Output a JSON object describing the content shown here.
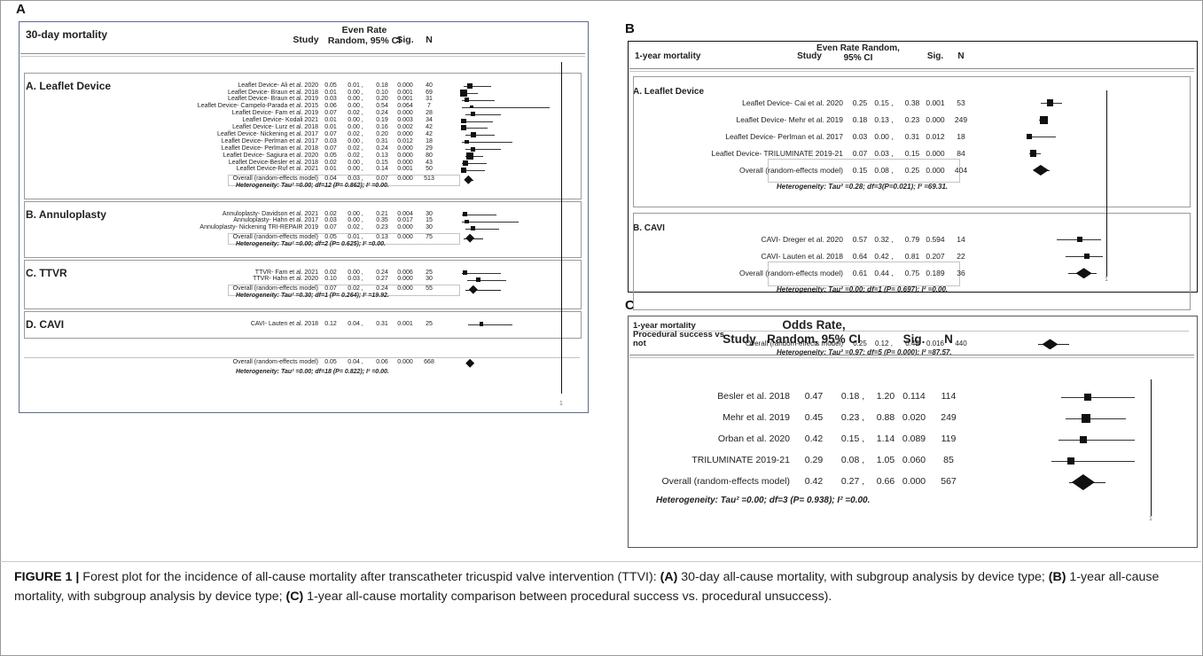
{
  "figure": {
    "panel_labels": [
      "A",
      "B",
      "C"
    ],
    "caption": {
      "prefix": "FIGURE 1 |",
      "parts": [
        {
          "bold": false,
          "text": " Forest plot for the incidence of all-cause mortality after transcatheter tricuspid valve intervention (TTVI): "
        },
        {
          "bold": true,
          "text": "(A)"
        },
        {
          "bold": false,
          "text": " 30-day all-cause mortality, with subgroup analysis by device type; "
        },
        {
          "bold": true,
          "text": "(B)"
        },
        {
          "bold": false,
          "text": " 1-year all-cause mortality, with subgroup analysis by device type; "
        },
        {
          "bold": true,
          "text": "(C)"
        },
        {
          "bold": false,
          "text": " 1-year all-cause mortality comparison between procedural success vs. procedural unsuccess)."
        }
      ]
    }
  },
  "chart_data": [
    {
      "type": "table",
      "panel": "A",
      "title": "30-day mortality",
      "columns": [
        "Study",
        "Even Rate Random, 95% CI",
        "Sig.",
        "N"
      ],
      "forest_axis_end": "1",
      "groups": [
        {
          "name": "A. Leaflet Device",
          "rows": [
            {
              "study": "Leaflet Device- Ali et al. 2020",
              "est": 0.05,
              "lo": 0.01,
              "hi": 0.18,
              "sig": "0.000",
              "n": 40
            },
            {
              "study": "Leaflet Device- Braun et al. 2018",
              "est": 0.01,
              "lo": 0.0,
              "hi": 0.1,
              "sig": "0.001",
              "n": 69
            },
            {
              "study": "Leaflet Device- Braun et al. 2019",
              "est": 0.03,
              "lo": 0.0,
              "hi": 0.2,
              "sig": "0.001",
              "n": 31
            },
            {
              "study": "Leaflet Device- Campelo-Parada et al. 2015",
              "est": 0.06,
              "lo": 0.0,
              "hi": 0.54,
              "sig": "0.064",
              "n": 7
            },
            {
              "study": "Leaflet Device- Fam et al. 2019",
              "est": 0.07,
              "lo": 0.02,
              "hi": 0.24,
              "sig": "0.000",
              "n": 28
            },
            {
              "study": "Leaflet Device- Kodali 2021",
              "est": 0.01,
              "lo": 0.0,
              "hi": 0.19,
              "sig": "0.003",
              "n": 34
            },
            {
              "study": "Leaflet Device- Lurz et al. 2018",
              "est": 0.01,
              "lo": 0.0,
              "hi": 0.16,
              "sig": "0.002",
              "n": 42
            },
            {
              "study": "Leaflet Device- Nickening et al. 2017",
              "est": 0.07,
              "lo": 0.02,
              "hi": 0.2,
              "sig": "0.000",
              "n": 42
            },
            {
              "study": "Leaflet Device- Perlman et al. 2017",
              "est": 0.03,
              "lo": 0.0,
              "hi": 0.31,
              "sig": "0.012",
              "n": 18
            },
            {
              "study": "Leaflet Device- Perlman et al. 2018",
              "est": 0.07,
              "lo": 0.02,
              "hi": 0.24,
              "sig": "0.000",
              "n": 29
            },
            {
              "study": "Leaflet Device- Sagiura et al. 2020",
              "est": 0.05,
              "lo": 0.02,
              "hi": 0.13,
              "sig": "0.000",
              "n": 80
            },
            {
              "study": "Leaflet Device-Besler et al. 2018",
              "est": 0.02,
              "lo": 0.0,
              "hi": 0.15,
              "sig": "0.000",
              "n": 43
            },
            {
              "study": "Leaflet Device-Ruf et al. 2021",
              "est": 0.01,
              "lo": 0.0,
              "hi": 0.14,
              "sig": "0.001",
              "n": 50
            }
          ],
          "overall": {
            "label": "Overall (random-effects model)",
            "est": 0.04,
            "lo": 0.03,
            "hi": 0.07,
            "sig": "0.000",
            "n": 513
          },
          "heterogeneity": "Heterogeneity: Tau² =0.00; df=12 (P= 0.862); I² =0.00."
        },
        {
          "name": "B. Annuloplasty",
          "rows": [
            {
              "study": "Annuloplasty- Davidson et al. 2021",
              "est": 0.02,
              "lo": 0.0,
              "hi": 0.21,
              "sig": "0.004",
              "n": 30
            },
            {
              "study": "Annuloplasty- Hahn et al. 2017",
              "est": 0.03,
              "lo": 0.0,
              "hi": 0.35,
              "sig": "0.017",
              "n": 15
            },
            {
              "study": "Annuloplasty- Nickening TRI-REPAIR 2019",
              "est": 0.07,
              "lo": 0.02,
              "hi": 0.23,
              "sig": "0.000",
              "n": 30
            }
          ],
          "overall": {
            "label": "Overall (random-effects model)",
            "est": 0.05,
            "lo": 0.01,
            "hi": 0.13,
            "sig": "0.000",
            "n": 75
          },
          "heterogeneity": "Heterogeneity: Tau² =0.00; df=2 (P= 0.625); I² =0.00."
        },
        {
          "name": "C. TTVR",
          "rows": [
            {
              "study": "TTVR- Fam et al. 2021",
              "est": 0.02,
              "lo": 0.0,
              "hi": 0.24,
              "sig": "0.006",
              "n": 25
            },
            {
              "study": "TTVR- Hahn et al. 2020",
              "est": 0.1,
              "lo": 0.03,
              "hi": 0.27,
              "sig": "0.000",
              "n": 30
            }
          ],
          "overall": {
            "label": "Overall (random-effects model)",
            "est": 0.07,
            "lo": 0.02,
            "hi": 0.24,
            "sig": "0.000",
            "n": 55
          },
          "heterogeneity": "Heterogeneity: Tau² =0.30; df=1 (P= 0.264); I² =19.92."
        },
        {
          "name": "D. CAVI",
          "rows": [
            {
              "study": "CAVI- Lauten et al. 2018",
              "est": 0.12,
              "lo": 0.04,
              "hi": 0.31,
              "sig": "0.001",
              "n": 25
            }
          ]
        }
      ],
      "total": {
        "label": "Overall (random-effects model)",
        "est": 0.05,
        "lo": 0.04,
        "hi": 0.06,
        "sig": "0.000",
        "n": 668
      },
      "total_heterogeneity": "Heterogeneity: Tau² =0.00; df=18 (P= 0.822); I² =0.00."
    },
    {
      "type": "table",
      "panel": "B",
      "title": "1-year mortality",
      "columns": [
        "Study",
        "Even Rate Random, 95% CI",
        "Sig.",
        "N"
      ],
      "forest_axis_end": "1",
      "groups": [
        {
          "name": "A. Leaflet Device",
          "rows": [
            {
              "study": "Leaflet Device- Cai et al. 2020",
              "est": 0.25,
              "lo": 0.15,
              "hi": 0.38,
              "sig": "0.001",
              "n": 53
            },
            {
              "study": "Leaflet Device- Mehr et al. 2019",
              "est": 0.18,
              "lo": 0.13,
              "hi": 0.23,
              "sig": "0.000",
              "n": 249
            },
            {
              "study": "Leaflet Device- Perlman et al. 2017",
              "est": 0.03,
              "lo": 0.0,
              "hi": 0.31,
              "sig": "0.012",
              "n": 18
            },
            {
              "study": "Leaflet Device- TRILUMINATE 2019-21",
              "est": 0.07,
              "lo": 0.03,
              "hi": 0.15,
              "sig": "0.000",
              "n": 84
            }
          ],
          "overall": {
            "label": "Overall (random-effects model)",
            "est": 0.15,
            "lo": 0.08,
            "hi": 0.25,
            "sig": "0.000",
            "n": 404
          },
          "heterogeneity": "Heterogeneity: Tau² =0.28; df=3(P=0.021); I² =69.31."
        },
        {
          "name": "B. CAVI",
          "rows": [
            {
              "study": "CAVI- Dreger et al. 2020",
              "est": 0.57,
              "lo": 0.32,
              "hi": 0.79,
              "sig": "0.594",
              "n": 14
            },
            {
              "study": "CAVI- Lauten et al. 2018",
              "est": 0.64,
              "lo": 0.42,
              "hi": 0.81,
              "sig": "0.207",
              "n": 22
            }
          ],
          "overall": {
            "label": "Overall (random-effects model)",
            "est": 0.61,
            "lo": 0.44,
            "hi": 0.75,
            "sig": "0.189",
            "n": 36
          },
          "heterogeneity": "Heterogeneity: Tau² =0.00; df=1 (P= 0.697); I² =0.00."
        }
      ],
      "total": {
        "label": "Overall (random-effects model)",
        "est": 0.25,
        "lo": 0.12,
        "hi": 0.45,
        "sig": "0.016",
        "n": 440
      },
      "total_heterogeneity": "Heterogeneity: Tau² =0.97; df=5 (P= 0.000); I² =87.57."
    },
    {
      "type": "table",
      "panel": "C",
      "title": [
        "1-year mortality",
        "Procedural success vs",
        "not"
      ],
      "columns": [
        "Study",
        "Odds Rate, Random, 95% CI",
        "Sig.",
        "N"
      ],
      "forest_axis_end": "1",
      "rows": [
        {
          "study": "Besler et al. 2018",
          "est": 0.47,
          "lo": 0.18,
          "hi": 1.2,
          "sig": "0.114",
          "n": 114
        },
        {
          "study": "Mehr et al. 2019",
          "est": 0.45,
          "lo": 0.23,
          "hi": 0.88,
          "sig": "0.020",
          "n": 249
        },
        {
          "study": "Orban et al. 2020",
          "est": 0.42,
          "lo": 0.15,
          "hi": 1.14,
          "sig": "0.089",
          "n": 119
        },
        {
          "study": "TRILUMINATE 2019-21",
          "est": 0.29,
          "lo": 0.08,
          "hi": 1.05,
          "sig": "0.060",
          "n": 85
        }
      ],
      "total": {
        "label": "Overall (random-effects model)",
        "est": 0.42,
        "lo": 0.27,
        "hi": 0.66,
        "sig": "0.000",
        "n": 567
      },
      "total_heterogeneity": "Heterogeneity: Tau² =0.00; df=3 (P= 0.938); I² =0.00."
    }
  ]
}
